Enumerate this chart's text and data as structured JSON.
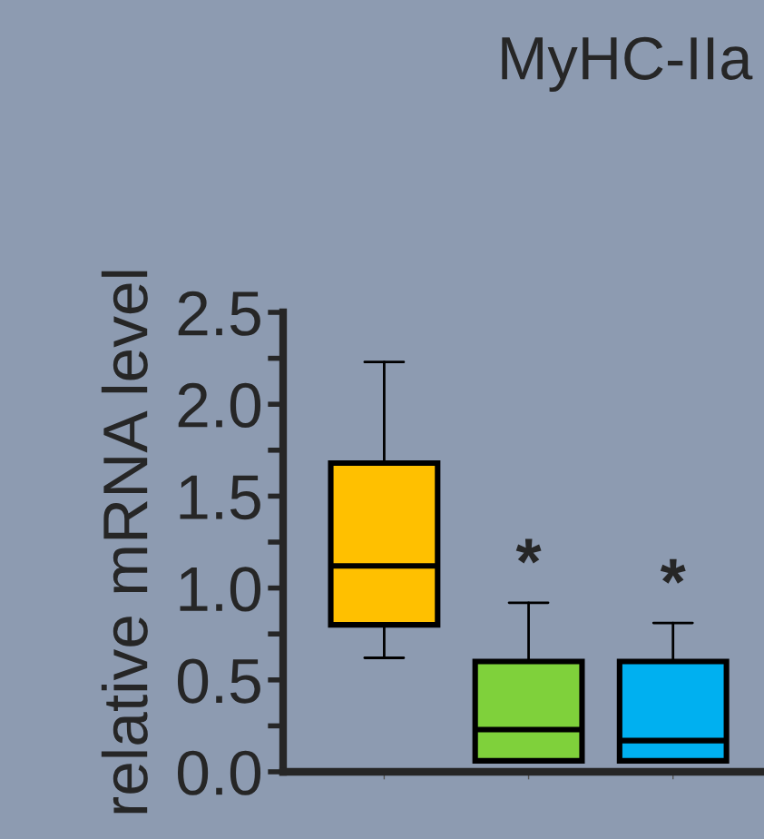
{
  "chart_data": {
    "type": "box",
    "title": "MyHC-IIa",
    "ylabel": "relative mRNA level",
    "categories": [
      null,
      null,
      null
    ],
    "colors": [
      "#ffc000",
      "#7fd13b",
      "#00b0f0"
    ],
    "boxes": [
      {
        "low": 0.62,
        "q1": 0.8,
        "median": 1.12,
        "q3": 1.68,
        "high": 2.23
      },
      {
        "low": 0.06,
        "q1": 0.06,
        "median": 0.23,
        "q3": 0.6,
        "high": 0.92
      },
      {
        "low": 0.06,
        "q1": 0.06,
        "median": 0.17,
        "q3": 0.6,
        "high": 0.81
      }
    ],
    "ylim": [
      0,
      2.5
    ],
    "yticks": [
      {
        "value": 0,
        "label": "0.0"
      },
      {
        "value": 0.25,
        "label": null
      },
      0.5,
      {
        "value": 0.75,
        "label": null
      },
      {
        "value": 1,
        "label": "1.0"
      },
      {
        "value": 1.25,
        "label": null
      },
      1.5,
      {
        "value": 1.75,
        "label": null
      },
      {
        "value": 2,
        "label": "2.0"
      },
      {
        "value": 2.25,
        "label": null
      },
      2.5
    ],
    "annotations": [
      {
        "text": "*",
        "y": 0.92
      },
      {
        "text": "*",
        "y": 0.81
      }
    ],
    "grid": false,
    "legend": false
  }
}
